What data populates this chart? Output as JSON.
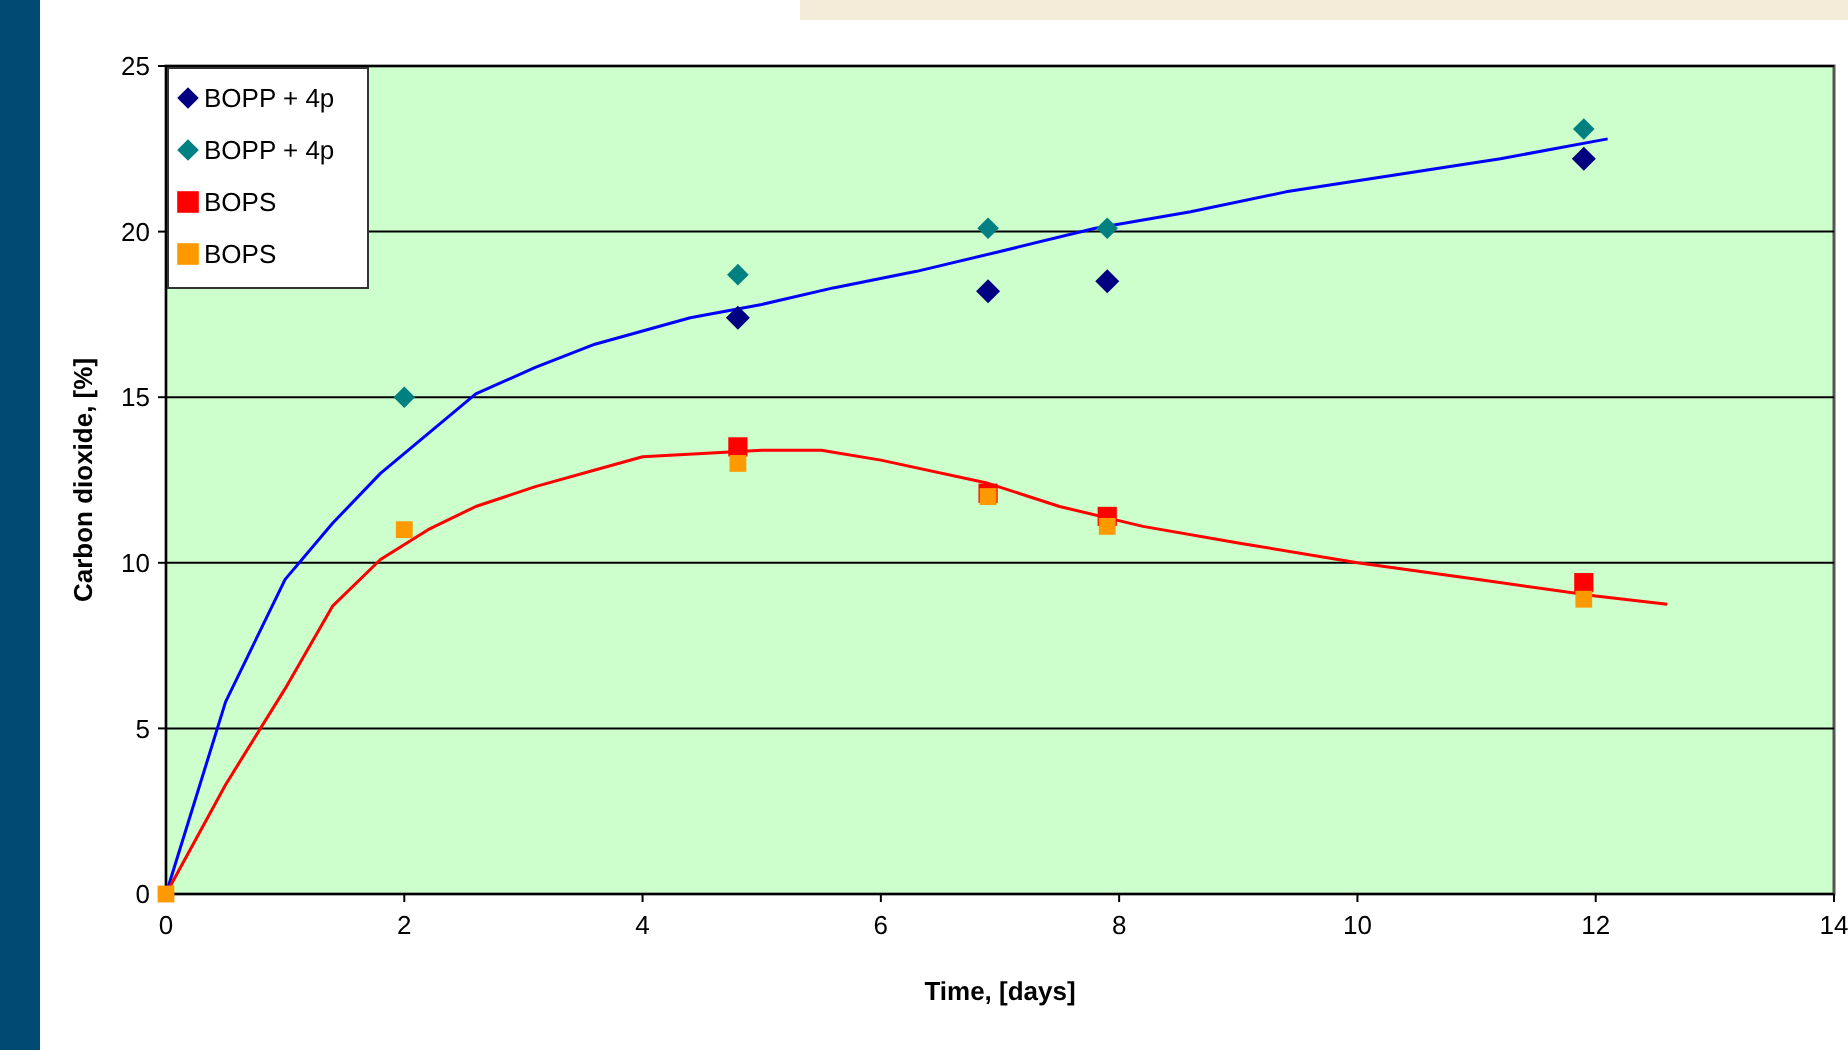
{
  "chart_data": {
    "type": "scatter",
    "xlabel": "Time, [days]",
    "ylabel": "Carbon dioxide, [%]",
    "xlim": [
      0,
      14
    ],
    "xticks": [
      0,
      2,
      4,
      6,
      8,
      10,
      12,
      14
    ],
    "ylim": [
      0,
      25
    ],
    "yticks": [
      0,
      5,
      10,
      15,
      20,
      25
    ],
    "grid": "y",
    "legend": "top left",
    "series": [
      {
        "name": "BOPP + 4p",
        "color": "#000080",
        "marker": "diamond",
        "x": [
          4.8,
          6.9,
          7.9,
          11.9
        ],
        "values": [
          17.4,
          18.2,
          18.5,
          22.2
        ]
      },
      {
        "name": "BOPP + 4p",
        "color": "#008080",
        "marker": "diamond",
        "x": [
          2,
          4.8,
          6.9,
          7.9,
          11.9
        ],
        "values": [
          15.0,
          18.7,
          20.1,
          20.1,
          23.1
        ]
      },
      {
        "name": "BOPS",
        "color": "#ff0000",
        "marker": "square",
        "x": [
          4.8,
          6.9,
          7.9,
          11.9
        ],
        "values": [
          13.5,
          12.1,
          11.4,
          9.4
        ]
      },
      {
        "name": "BOPS",
        "color": "#ff9900",
        "marker": "square",
        "x": [
          0,
          2,
          4.8,
          6.9,
          7.9,
          11.9
        ],
        "values": [
          0,
          11.0,
          13.0,
          12.0,
          11.1,
          8.9
        ]
      },
      {
        "type": "line",
        "color": "#0000ff",
        "marker": "none",
        "x": [
          0,
          0.5,
          1,
          1.4,
          1.8,
          2.2,
          2.6,
          3.1,
          3.6,
          4,
          4.4,
          5,
          5.6,
          6.3,
          7,
          7.8,
          8.6,
          9.4,
          10.3,
          11.2,
          12.1
        ],
        "values": [
          0,
          5.8,
          9.5,
          11.2,
          12.7,
          13.9,
          15.1,
          15.9,
          16.6,
          17.0,
          17.4,
          17.8,
          18.3,
          18.8,
          19.4,
          20.1,
          20.6,
          21.2,
          21.7,
          22.2,
          22.8
        ]
      },
      {
        "type": "line",
        "color": "#ff0000",
        "marker": "none",
        "x": [
          0,
          0.5,
          1,
          1.4,
          1.8,
          2.2,
          2.6,
          3.1,
          3.6,
          4,
          4.5,
          5,
          5.5,
          6,
          6.9,
          7.5,
          8.2,
          9,
          10,
          11,
          12,
          12.6
        ],
        "values": [
          0,
          3.3,
          6.2,
          8.7,
          10.1,
          11.0,
          11.7,
          12.3,
          12.8,
          13.2,
          13.3,
          13.4,
          13.4,
          13.1,
          12.4,
          11.7,
          11.1,
          10.6,
          10.0,
          9.5,
          9.0,
          8.75
        ]
      }
    ]
  }
}
